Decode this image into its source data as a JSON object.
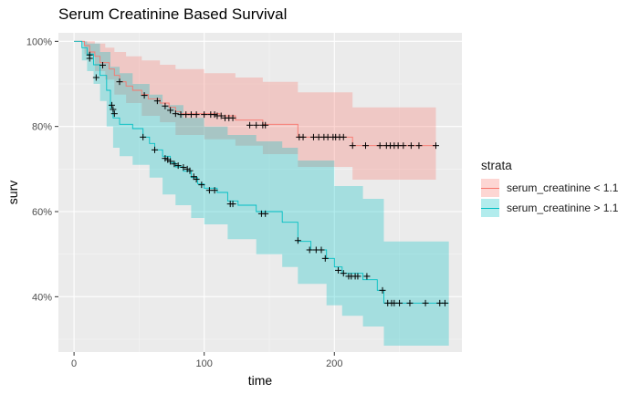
{
  "chart_data": {
    "type": "line",
    "title": "Serum Creatinine Based Survival",
    "xlabel": "time",
    "ylabel": "surv",
    "xlim": [
      -12,
      298
    ],
    "ylim": [
      0.27,
      1.02
    ],
    "xticks": [
      0,
      100,
      200
    ],
    "yticks": [
      0.4,
      0.6,
      0.8,
      1.0
    ],
    "ytick_labels": [
      "40%",
      "60%",
      "80%",
      "100%"
    ],
    "legend_title": "strata",
    "legend_position": "right",
    "grid": true,
    "series": [
      {
        "name": "serum_creatinine < 1.1",
        "color": "#F8766D",
        "fill": "#F8766D",
        "steps": [
          [
            0,
            1.0
          ],
          [
            8,
            0.99
          ],
          [
            12,
            0.975
          ],
          [
            16,
            0.965
          ],
          [
            20,
            0.95
          ],
          [
            27,
            0.935
          ],
          [
            31,
            0.92
          ],
          [
            35,
            0.905
          ],
          [
            40,
            0.895
          ],
          [
            45,
            0.885
          ],
          [
            52,
            0.875
          ],
          [
            57,
            0.865
          ],
          [
            66,
            0.855
          ],
          [
            73,
            0.845
          ],
          [
            78,
            0.835
          ],
          [
            82,
            0.83
          ],
          [
            112,
            0.825
          ],
          [
            124,
            0.815
          ],
          [
            145,
            0.805
          ],
          [
            172,
            0.775
          ],
          [
            214,
            0.755
          ],
          [
            278,
            0.755
          ]
        ],
        "upper": [
          [
            0,
            1.0
          ],
          [
            8,
            1.0
          ],
          [
            16,
            0.995
          ],
          [
            24,
            0.985
          ],
          [
            31,
            0.975
          ],
          [
            40,
            0.965
          ],
          [
            52,
            0.955
          ],
          [
            66,
            0.945
          ],
          [
            78,
            0.935
          ],
          [
            100,
            0.925
          ],
          [
            124,
            0.915
          ],
          [
            145,
            0.905
          ],
          [
            172,
            0.88
          ],
          [
            214,
            0.845
          ],
          [
            278,
            0.845
          ]
        ],
        "lower": [
          [
            0,
            1.0
          ],
          [
            8,
            0.97
          ],
          [
            16,
            0.93
          ],
          [
            24,
            0.91
          ],
          [
            31,
            0.875
          ],
          [
            40,
            0.855
          ],
          [
            52,
            0.825
          ],
          [
            66,
            0.81
          ],
          [
            78,
            0.78
          ],
          [
            100,
            0.77
          ],
          [
            124,
            0.755
          ],
          [
            145,
            0.735
          ],
          [
            172,
            0.705
          ],
          [
            214,
            0.675
          ],
          [
            278,
            0.675
          ]
        ],
        "censored": [
          [
            12,
            0.968
          ],
          [
            22,
            0.944
          ],
          [
            35,
            0.905
          ],
          [
            54,
            0.873
          ],
          [
            64,
            0.86
          ],
          [
            70,
            0.848
          ],
          [
            74,
            0.838
          ],
          [
            78,
            0.83
          ],
          [
            82,
            0.828
          ],
          [
            86,
            0.828
          ],
          [
            90,
            0.828
          ],
          [
            94,
            0.828
          ],
          [
            100,
            0.828
          ],
          [
            105,
            0.828
          ],
          [
            108,
            0.828
          ],
          [
            110,
            0.825
          ],
          [
            113,
            0.825
          ],
          [
            116,
            0.82
          ],
          [
            119,
            0.82
          ],
          [
            122,
            0.82
          ],
          [
            135,
            0.803
          ],
          [
            140,
            0.803
          ],
          [
            145,
            0.803
          ],
          [
            147,
            0.803
          ],
          [
            173,
            0.775
          ],
          [
            176,
            0.775
          ],
          [
            184,
            0.775
          ],
          [
            188,
            0.775
          ],
          [
            192,
            0.775
          ],
          [
            195,
            0.775
          ],
          [
            199,
            0.775
          ],
          [
            201,
            0.775
          ],
          [
            204,
            0.775
          ],
          [
            207,
            0.775
          ],
          [
            214,
            0.755
          ],
          [
            224,
            0.755
          ],
          [
            235,
            0.755
          ],
          [
            240,
            0.755
          ],
          [
            243,
            0.755
          ],
          [
            246,
            0.755
          ],
          [
            249,
            0.755
          ],
          [
            253,
            0.755
          ],
          [
            259,
            0.755
          ],
          [
            265,
            0.755
          ],
          [
            278,
            0.755
          ]
        ]
      },
      {
        "name": "serum_creatinine > 1.1",
        "color": "#00BFC4",
        "fill": "#00BFC4",
        "steps": [
          [
            0,
            1.0
          ],
          [
            6,
            0.985
          ],
          [
            10,
            0.97
          ],
          [
            15,
            0.945
          ],
          [
            20,
            0.92
          ],
          [
            25,
            0.885
          ],
          [
            28,
            0.84
          ],
          [
            30,
            0.82
          ],
          [
            35,
            0.805
          ],
          [
            45,
            0.795
          ],
          [
            53,
            0.775
          ],
          [
            58,
            0.76
          ],
          [
            62,
            0.745
          ],
          [
            68,
            0.73
          ],
          [
            74,
            0.715
          ],
          [
            78,
            0.705
          ],
          [
            84,
            0.695
          ],
          [
            90,
            0.68
          ],
          [
            95,
            0.665
          ],
          [
            100,
            0.655
          ],
          [
            110,
            0.645
          ],
          [
            118,
            0.625
          ],
          [
            126,
            0.615
          ],
          [
            140,
            0.6
          ],
          [
            160,
            0.575
          ],
          [
            172,
            0.53
          ],
          [
            182,
            0.51
          ],
          [
            194,
            0.49
          ],
          [
            200,
            0.47
          ],
          [
            206,
            0.455
          ],
          [
            222,
            0.44
          ],
          [
            233,
            0.415
          ],
          [
            238,
            0.385
          ],
          [
            288,
            0.385
          ]
        ],
        "upper": [
          [
            0,
            1.0
          ],
          [
            10,
            0.995
          ],
          [
            20,
            0.975
          ],
          [
            28,
            0.94
          ],
          [
            35,
            0.925
          ],
          [
            45,
            0.9
          ],
          [
            58,
            0.875
          ],
          [
            68,
            0.85
          ],
          [
            84,
            0.82
          ],
          [
            100,
            0.8
          ],
          [
            118,
            0.78
          ],
          [
            140,
            0.765
          ],
          [
            160,
            0.75
          ],
          [
            172,
            0.72
          ],
          [
            200,
            0.66
          ],
          [
            222,
            0.63
          ],
          [
            238,
            0.53
          ],
          [
            288,
            0.53
          ]
        ],
        "lower": [
          [
            0,
            1.0
          ],
          [
            6,
            0.955
          ],
          [
            10,
            0.93
          ],
          [
            15,
            0.9
          ],
          [
            20,
            0.86
          ],
          [
            25,
            0.8
          ],
          [
            30,
            0.75
          ],
          [
            35,
            0.73
          ],
          [
            45,
            0.71
          ],
          [
            58,
            0.68
          ],
          [
            68,
            0.64
          ],
          [
            78,
            0.615
          ],
          [
            90,
            0.585
          ],
          [
            100,
            0.57
          ],
          [
            118,
            0.535
          ],
          [
            140,
            0.5
          ],
          [
            160,
            0.47
          ],
          [
            172,
            0.43
          ],
          [
            194,
            0.38
          ],
          [
            206,
            0.355
          ],
          [
            222,
            0.33
          ],
          [
            238,
            0.285
          ],
          [
            288,
            0.285
          ]
        ],
        "censored": [
          [
            12,
            0.96
          ],
          [
            17,
            0.915
          ],
          [
            29,
            0.85
          ],
          [
            30,
            0.84
          ],
          [
            31,
            0.83
          ],
          [
            53,
            0.775
          ],
          [
            62,
            0.745
          ],
          [
            70,
            0.725
          ],
          [
            72,
            0.722
          ],
          [
            74,
            0.718
          ],
          [
            77,
            0.712
          ],
          [
            80,
            0.708
          ],
          [
            84,
            0.704
          ],
          [
            87,
            0.7
          ],
          [
            89,
            0.696
          ],
          [
            92,
            0.682
          ],
          [
            94,
            0.676
          ],
          [
            98,
            0.663
          ],
          [
            104,
            0.65
          ],
          [
            108,
            0.65
          ],
          [
            120,
            0.618
          ],
          [
            122,
            0.618
          ],
          [
            144,
            0.595
          ],
          [
            147,
            0.595
          ],
          [
            172,
            0.532
          ],
          [
            181,
            0.51
          ],
          [
            186,
            0.51
          ],
          [
            190,
            0.51
          ],
          [
            193,
            0.49
          ],
          [
            203,
            0.462
          ],
          [
            207,
            0.455
          ],
          [
            211,
            0.448
          ],
          [
            213,
            0.448
          ],
          [
            216,
            0.448
          ],
          [
            218,
            0.448
          ],
          [
            225,
            0.448
          ],
          [
            237,
            0.415
          ],
          [
            241,
            0.385
          ],
          [
            244,
            0.385
          ],
          [
            246,
            0.385
          ],
          [
            250,
            0.385
          ],
          [
            258,
            0.385
          ],
          [
            270,
            0.385
          ],
          [
            281,
            0.385
          ],
          [
            285,
            0.385
          ]
        ]
      }
    ]
  }
}
